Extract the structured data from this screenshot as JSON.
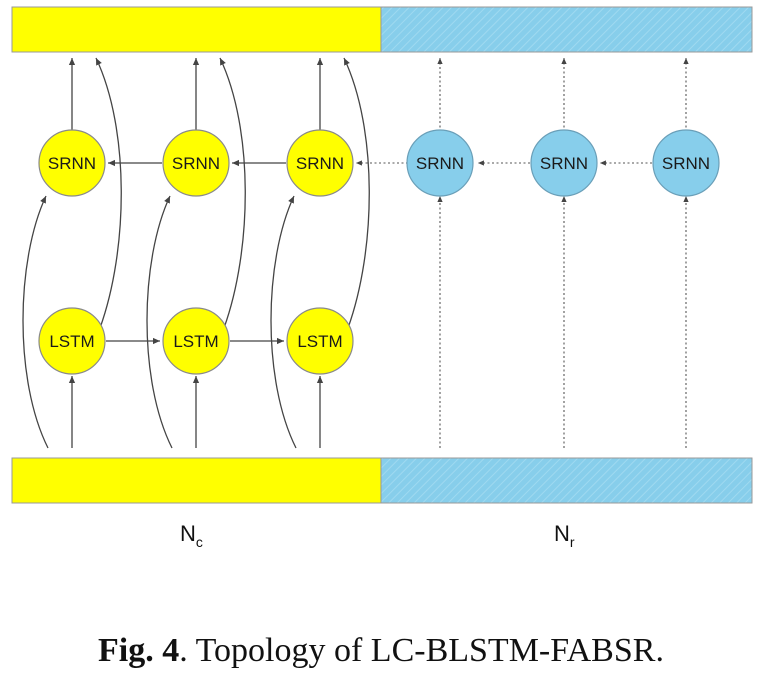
{
  "diagram": {
    "colors": {
      "yellow": "#FFFF00",
      "blue": "#87CEEB",
      "node_stroke": "#8a8a8a",
      "edge": "#444444"
    },
    "nodes": {
      "srnn_yellow": [
        "SRNN",
        "SRNN",
        "SRNN"
      ],
      "srnn_blue": [
        "SRNN",
        "SRNN",
        "SRNN"
      ],
      "lstm": [
        "LSTM",
        "LSTM",
        "LSTM"
      ]
    },
    "labels": {
      "nc_main": "N",
      "nc_sub": "c",
      "nr_main": "N",
      "nr_sub": "r"
    }
  },
  "caption": {
    "fig_label": "Fig. 4",
    "text": ". Topology of LC-BLSTM-FABSR."
  }
}
